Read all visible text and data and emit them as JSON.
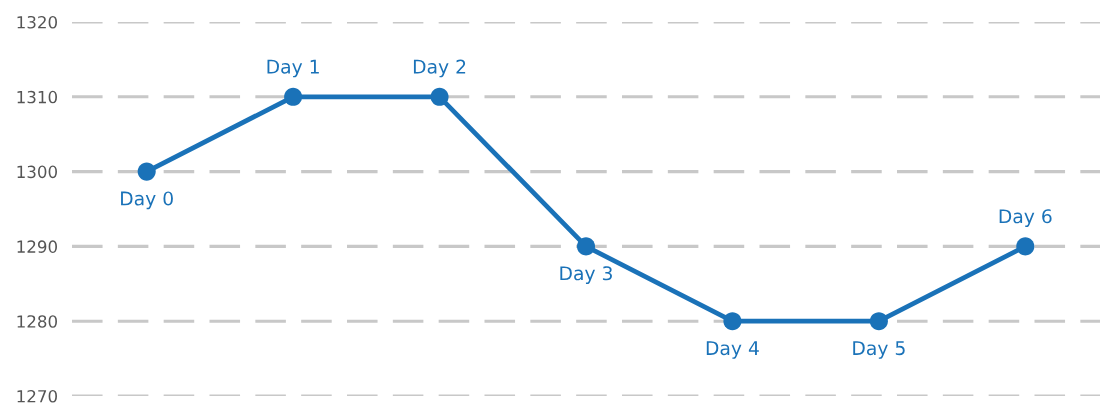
{
  "chart_data": {
    "type": "line",
    "categories": [
      "Day 0",
      "Day 1",
      "Day 2",
      "Day 3",
      "Day 4",
      "Day 5",
      "Day 6"
    ],
    "series": [
      {
        "color": "#1a72b8",
        "values": [
          1300,
          1310,
          1310,
          1290,
          1280,
          1280,
          1290
        ]
      }
    ],
    "ylim": [
      1270,
      1320
    ],
    "yticks": [
      1270,
      1280,
      1290,
      1300,
      1310,
      1320
    ],
    "grid": "y",
    "marker": "circle",
    "line_style": "solid",
    "tick_labels": "y"
  }
}
